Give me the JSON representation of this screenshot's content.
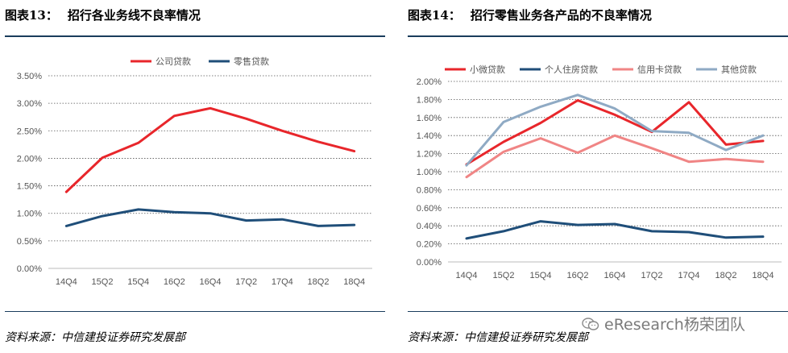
{
  "left": {
    "fig_title": "图表13：",
    "fig_subtitle": "招行各业务线不良率情况",
    "source": "资料来源：中信建投证券研究发展部"
  },
  "right": {
    "fig_title": "图表14：",
    "fig_subtitle": "招行零售业务各产品的不良率情况",
    "source": "资料来源：中信建投证券研究发展部"
  },
  "watermark": "eResearch杨荣团队",
  "chart_data": [
    {
      "type": "line",
      "categories": [
        "14Q4",
        "15Q2",
        "15Q4",
        "16Q2",
        "16Q4",
        "17Q2",
        "17Q4",
        "18Q2",
        "18Q4"
      ],
      "series": [
        {
          "name": "公司贷款",
          "color": "#e8262b",
          "values": [
            1.39,
            2.01,
            2.28,
            2.77,
            2.91,
            2.72,
            2.5,
            2.3,
            2.13
          ]
        },
        {
          "name": "零售贷款",
          "color": "#1f4e79",
          "values": [
            0.77,
            0.95,
            1.07,
            1.02,
            1.0,
            0.87,
            0.89,
            0.77,
            0.79
          ]
        }
      ],
      "yticks": [
        "0.00%",
        "0.50%",
        "1.00%",
        "1.50%",
        "2.00%",
        "2.50%",
        "3.00%",
        "3.50%"
      ],
      "ylim": [
        0,
        3.5
      ],
      "grid": true,
      "legend": "top"
    },
    {
      "type": "line",
      "categories": [
        "14Q4",
        "15Q2",
        "15Q4",
        "16Q2",
        "16Q4",
        "17Q2",
        "17Q4",
        "18Q2",
        "18Q4"
      ],
      "series": [
        {
          "name": "小微贷款",
          "color": "#e8262b",
          "values": [
            1.08,
            1.33,
            1.54,
            1.79,
            1.63,
            1.44,
            1.77,
            1.3,
            1.34
          ]
        },
        {
          "name": "个人住房贷款",
          "color": "#1f4e79",
          "values": [
            0.26,
            0.34,
            0.45,
            0.41,
            0.42,
            0.34,
            0.33,
            0.27,
            0.28
          ]
        },
        {
          "name": "信用卡贷款",
          "color": "#f08585",
          "values": [
            0.94,
            1.22,
            1.37,
            1.21,
            1.4,
            1.26,
            1.11,
            1.14,
            1.11
          ]
        },
        {
          "name": "其他贷款",
          "color": "#8faac4",
          "values": [
            1.07,
            1.55,
            1.72,
            1.85,
            1.7,
            1.45,
            1.43,
            1.24,
            1.4
          ]
        }
      ],
      "yticks": [
        "0.00%",
        "0.20%",
        "0.40%",
        "0.60%",
        "0.80%",
        "1.00%",
        "1.20%",
        "1.40%",
        "1.60%",
        "1.80%",
        "2.00%"
      ],
      "ylim": [
        0,
        2.0
      ],
      "grid": true,
      "legend": "top"
    }
  ]
}
